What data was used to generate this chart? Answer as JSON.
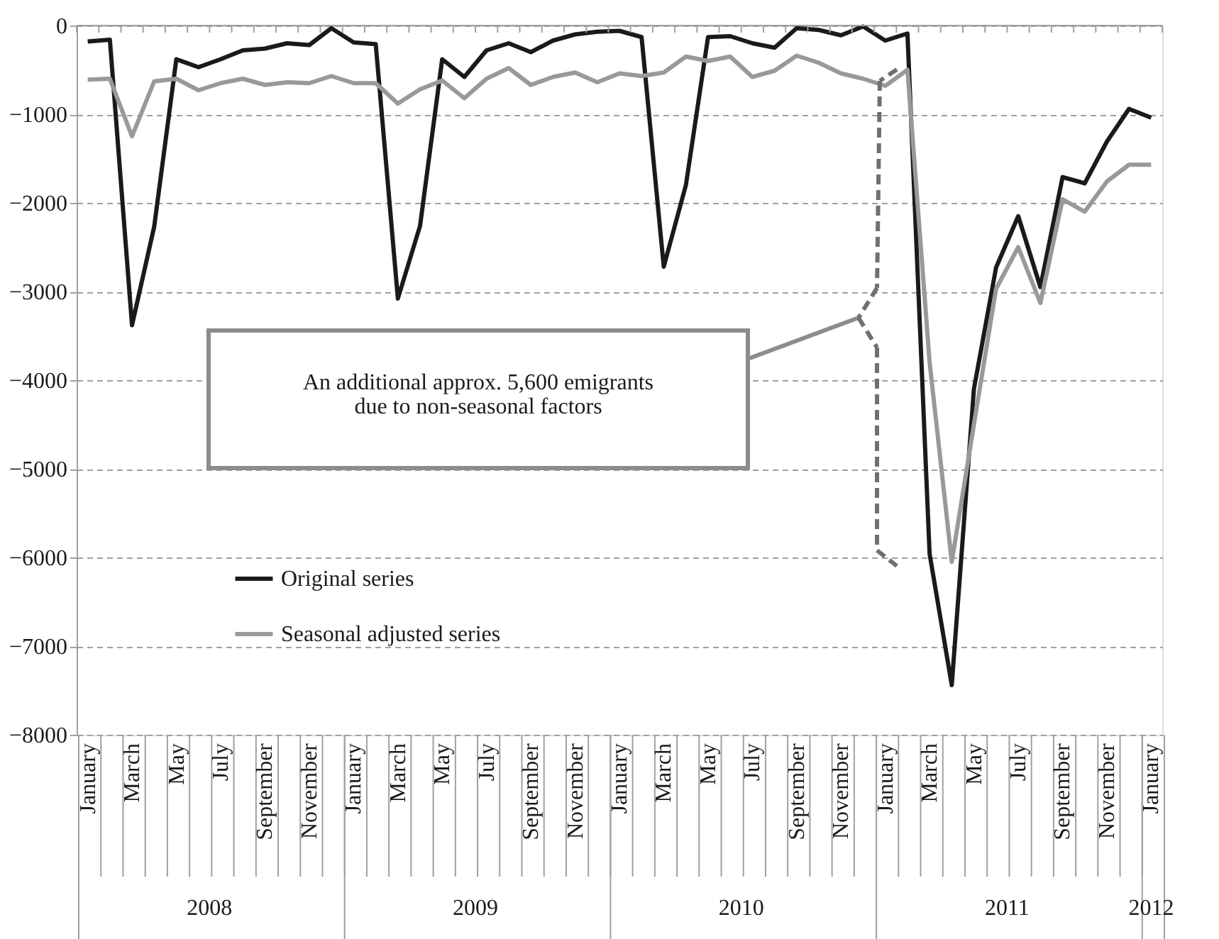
{
  "chart_data": {
    "type": "line",
    "categories": [
      "January",
      null,
      "March",
      null,
      "May",
      null,
      "July",
      null,
      "September",
      null,
      "November",
      null,
      "January",
      null,
      "March",
      null,
      "May",
      null,
      "July",
      null,
      "September",
      null,
      "November",
      null,
      "January",
      null,
      "March",
      null,
      "May",
      null,
      "July",
      null,
      "September",
      null,
      "November",
      null,
      "January",
      null,
      "March",
      null,
      "May",
      null,
      "July",
      null,
      "September",
      null,
      "November",
      null,
      "January"
    ],
    "series": [
      {
        "name": "Original series",
        "color": "#1a1a1a",
        "values": [
          -180,
          -160,
          -3380,
          -2270,
          -380,
          -470,
          -380,
          -280,
          -260,
          -200,
          -220,
          -30,
          -190,
          -210,
          -3080,
          -2260,
          -380,
          -580,
          -280,
          -200,
          -300,
          -170,
          -100,
          -70,
          -60,
          -130,
          -2720,
          -1800,
          -130,
          -120,
          -200,
          -250,
          -30,
          -50,
          -110,
          -10,
          -170,
          -90,
          -5960,
          -7440,
          -4100,
          -2730,
          -2150,
          -2950,
          -1710,
          -1780,
          -1310,
          -940,
          -1040
        ]
      },
      {
        "name": "Seasonal adjusted series",
        "color": "#999999",
        "values": [
          -610,
          -600,
          -1250,
          -630,
          -600,
          -730,
          -650,
          -600,
          -670,
          -640,
          -650,
          -570,
          -650,
          -650,
          -880,
          -720,
          -620,
          -820,
          -600,
          -480,
          -670,
          -580,
          -530,
          -640,
          -540,
          -570,
          -530,
          -350,
          -400,
          -350,
          -580,
          -510,
          -340,
          -420,
          -540,
          -600,
          -680,
          -500,
          -3800,
          -6050,
          -4500,
          -2970,
          -2500,
          -3130,
          -1960,
          -2100,
          -1760,
          -1570,
          -1570
        ]
      }
    ],
    "ylim": [
      -8000,
      0
    ],
    "yticks": [
      -8000,
      -7000,
      -6000,
      -5000,
      -4000,
      -3000,
      -2000,
      -1000,
      0
    ],
    "grid": "y",
    "legend": "bottom left",
    "line_style": "solid",
    "annotations": [
      "An additional approx. 5,600 emigrants\ndue to non-seasonal factors",
      "2008",
      "2009",
      "2010",
      "2011",
      "2012"
    ]
  }
}
